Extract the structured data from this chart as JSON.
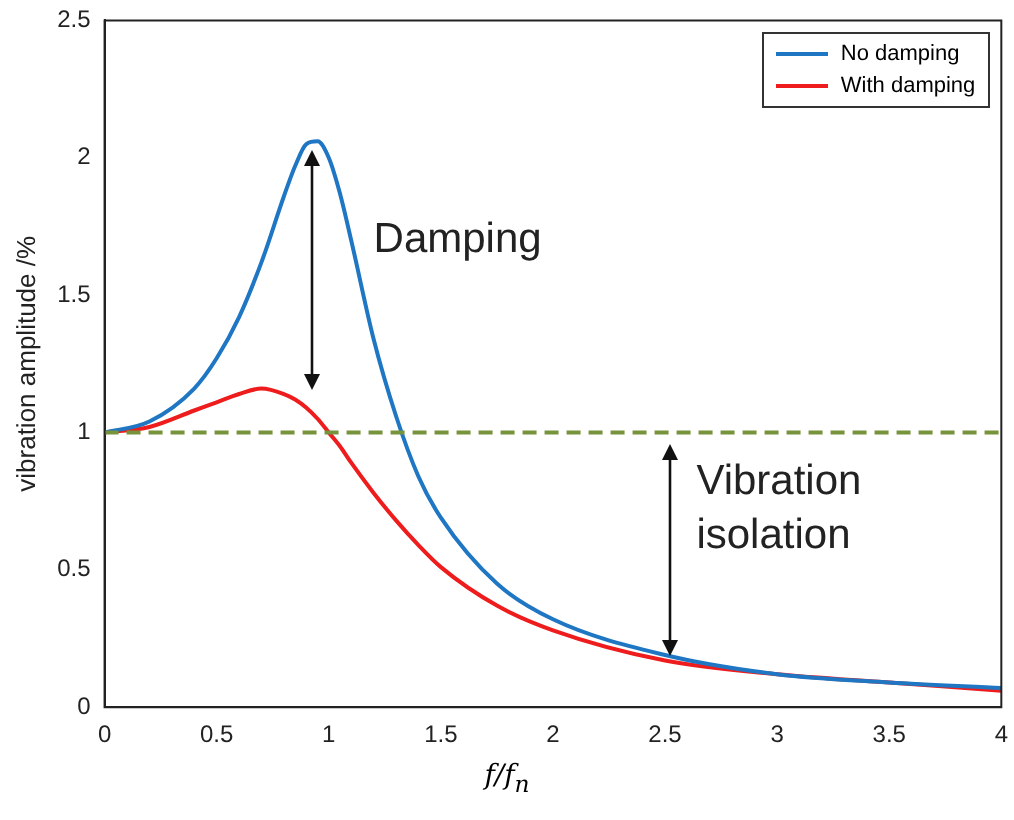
{
  "chart_data": {
    "type": "line",
    "xlabel": "f/f$_{n}$",
    "ylabel": "vibration amplitude /%",
    "xlim": [
      0,
      4
    ],
    "xticks": [
      0,
      0.5,
      1,
      1.5,
      2,
      2.5,
      3,
      3.5,
      4
    ],
    "ylim": [
      0,
      2.5
    ],
    "yticks": [
      0,
      0.5,
      1,
      1.5,
      2,
      2.5
    ],
    "grid": false,
    "legend": "top right",
    "marker": "none",
    "line_style": "solid",
    "x": [
      0,
      0.2,
      0.4,
      0.5,
      0.6,
      0.7,
      0.8,
      0.85,
      0.9,
      0.95,
      1,
      1.05,
      1.1,
      1.2,
      1.3,
      1.4,
      1.5,
      1.75,
      2,
      2.5,
      3,
      3.5,
      4
    ],
    "series": [
      {
        "name": "No damping",
        "color": "#1f77c4",
        "values": [
          1,
          1.04,
          1.16,
          1.27,
          1.42,
          1.62,
          1.86,
          1.97,
          2.05,
          2.06,
          2,
          1.87,
          1.7,
          1.34,
          1.06,
          0.84,
          0.69,
          0.45,
          0.32,
          0.19,
          0.12,
          0.09,
          0.07
        ]
      },
      {
        "name": "With damping",
        "color": "#ee1c1c",
        "values": [
          1,
          1.02,
          1.08,
          1.11,
          1.14,
          1.16,
          1.14,
          1.12,
          1.09,
          1.05,
          1,
          0.95,
          0.89,
          0.78,
          0.68,
          0.59,
          0.51,
          0.37,
          0.28,
          0.17,
          0.12,
          0.09,
          0.06
        ]
      }
    ],
    "ref_lines": [
      {
        "axis": "y",
        "value": 1,
        "color": "#77933c",
        "line_style": "dashed"
      }
    ],
    "annotations": [
      "Damping",
      "Vibration isolation"
    ]
  }
}
